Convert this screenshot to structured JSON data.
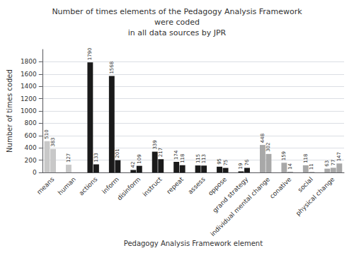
{
  "chart_data": {
    "type": "bar",
    "title": "Number of times elements of the Pedagogy Analysis Framework\nwere coded\nin all data sources by JPR",
    "xlabel": "Pedagogy Analysis Framework element",
    "ylabel": "Number of times coded",
    "categories": [
      "means",
      "human",
      "actions",
      "inform",
      "disinform",
      "instruct",
      "repeat",
      "assess",
      "oppose",
      "grand strategy",
      "individual mental change",
      "conative",
      "social",
      "physical change"
    ],
    "series": [
      {
        "values": [
          510,
          127,
          1790,
          1568,
          42,
          339,
          174,
          115,
          95,
          19,
          448,
          159,
          118,
          63
        ],
        "colors": [
          "#c8c8c8",
          "#c8c8c8",
          "#1a1a1a",
          "#1a1a1a",
          "#1a1a1a",
          "#1a1a1a",
          "#1a1a1a",
          "#1a1a1a",
          "#1a1a1a",
          "#1a1a1a",
          "#a8a8a8",
          "#a8a8a8",
          "#a8a8a8",
          "#a8a8a8"
        ]
      },
      {
        "values": [
          383,
          null,
          133,
          201,
          109,
          217,
          118,
          113,
          75,
          76,
          302,
          14,
          11,
          77
        ],
        "colors": [
          "#c8c8c8",
          null,
          "#1a1a1a",
          "#1a1a1a",
          "#1a1a1a",
          "#1a1a1a",
          "#1a1a1a",
          "#1a1a1a",
          "#1a1a1a",
          "#1a1a1a",
          "#a8a8a8",
          "#a8a8a8",
          "#a8a8a8",
          "#a8a8a8"
        ]
      },
      {
        "values": [
          null,
          null,
          null,
          null,
          null,
          null,
          null,
          null,
          null,
          null,
          null,
          null,
          null,
          147
        ],
        "colors": [
          null,
          null,
          null,
          null,
          null,
          null,
          null,
          null,
          null,
          null,
          null,
          null,
          null,
          "#a8a8a8"
        ]
      }
    ],
    "ylim": [
      0,
      2000
    ],
    "yticks": [
      0,
      200,
      400,
      600,
      800,
      1000,
      1200,
      1400,
      1600,
      1800
    ],
    "grid": true,
    "data_labels": true
  }
}
